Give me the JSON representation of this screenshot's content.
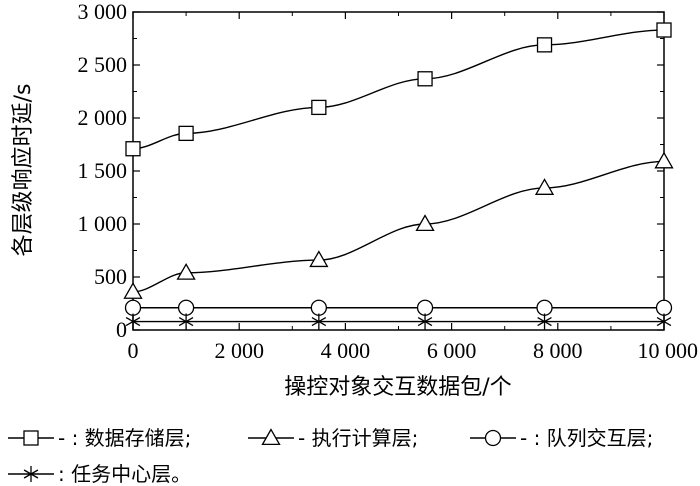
{
  "chart_data": {
    "type": "line",
    "xlabel": "操控对象交互数据包/个",
    "ylabel": "各层级响应时延/s",
    "xlim": [
      0,
      10000
    ],
    "ylim": [
      0,
      3000
    ],
    "x_ticks": [
      0,
      2000,
      4000,
      6000,
      8000,
      10000
    ],
    "x_tick_labels": [
      "0",
      "2 000",
      "4 000",
      "6 000",
      "8 000",
      "10 000"
    ],
    "y_ticks": [
      0,
      500,
      1000,
      1500,
      2000,
      2500,
      3000
    ],
    "y_tick_labels": [
      "0",
      "500",
      "1 000",
      "1 500",
      "2 000",
      "2 500",
      "3 000"
    ],
    "x": [
      0,
      1000,
      3500,
      5500,
      7750,
      10000
    ],
    "grid": false,
    "legend_position": "bottom",
    "series": [
      {
        "name": "数据存储层",
        "legend_label": "- : 数据存储层;",
        "marker": "square",
        "values": [
          1710,
          1855,
          2100,
          2370,
          2690,
          2830
        ]
      },
      {
        "name": "执行计算层",
        "legend_label": "- 执行计算层;",
        "marker": "triangle",
        "values": [
          360,
          540,
          660,
          1000,
          1340,
          1590
        ]
      },
      {
        "name": "队列交互层",
        "legend_label": "- : 队列交互层;",
        "marker": "circle",
        "values": [
          210,
          210,
          210,
          210,
          210,
          210
        ]
      },
      {
        "name": "任务中心层",
        "legend_label": ": 任务中心层。",
        "marker": "asterisk",
        "values": [
          80,
          80,
          80,
          80,
          80,
          80
        ]
      }
    ]
  }
}
